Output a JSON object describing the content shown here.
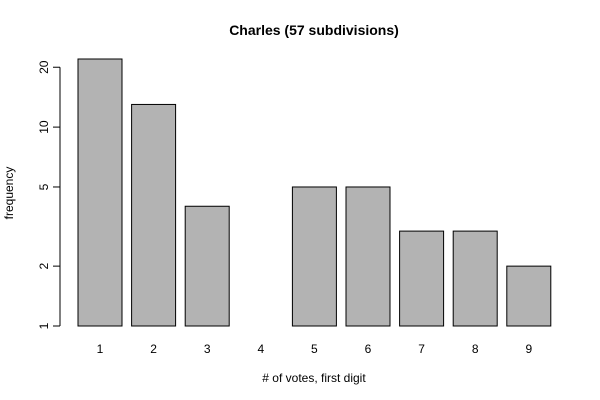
{
  "chart_data": {
    "type": "bar",
    "title": "Charles (57 subdivisions)",
    "xlabel": "# of votes, first digit",
    "ylabel": "frequency",
    "categories": [
      "1",
      "2",
      "3",
      "4",
      "5",
      "6",
      "7",
      "8",
      "9"
    ],
    "values": [
      22,
      13,
      4,
      0,
      5,
      5,
      3,
      3,
      2
    ],
    "y_scale": "log",
    "ylim": [
      1,
      22
    ],
    "y_ticks": [
      1,
      2,
      5,
      10,
      20
    ],
    "bar_color": "#b3b3b3",
    "grid": false
  }
}
